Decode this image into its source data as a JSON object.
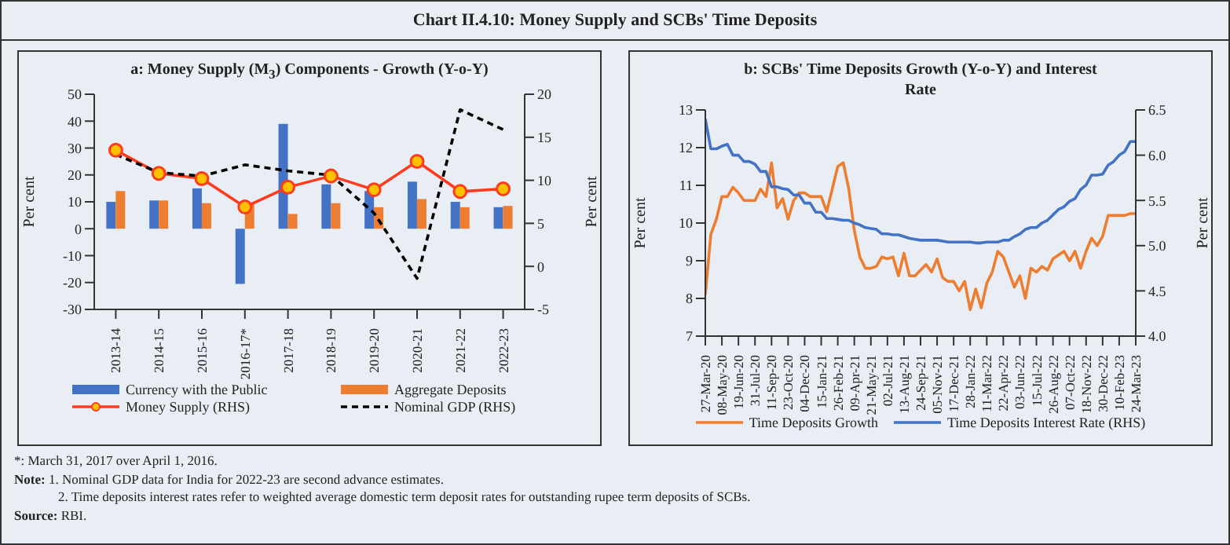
{
  "chart_data": [
    {
      "type": "bar",
      "title": "a: Money Supply (M$_{3}$) Components - Growth (Y-o-Y)",
      "ylabel": "Per cent",
      "y2label": "Per cent",
      "categories": [
        "2013-14",
        "2014-15",
        "2015-16",
        "2016-17*",
        "2017-18",
        "2018-19",
        "2019-20",
        "2020-21",
        "2021-22",
        "2022-23"
      ],
      "series": [
        {
          "name": "Currency with the Public",
          "color": "#4472c4",
          "values": [
            10,
            10.5,
            15,
            -20.5,
            39,
            16.5,
            14,
            17.5,
            10,
            8
          ]
        },
        {
          "name": "Aggregate Deposits",
          "color": "#ed7d31",
          "values": [
            14,
            10.5,
            9.5,
            9,
            5.5,
            9.5,
            8,
            11,
            8,
            8.5
          ]
        },
        {
          "name": "Money Supply (RHS)",
          "type": "line",
          "axis": "y2",
          "color": "#ff3b1f",
          "marker": "circle",
          "line_style": "solid",
          "values": [
            13.5,
            10.8,
            10.2,
            6.9,
            9.2,
            10.5,
            8.9,
            12.2,
            8.7,
            9.0
          ]
        },
        {
          "name": "Nominal GDP (RHS)",
          "type": "line",
          "axis": "y2",
          "color": "#000000",
          "marker": "none",
          "line_style": "dashed",
          "values": [
            13,
            10.9,
            10.5,
            11.8,
            11.1,
            10.6,
            6.2,
            -1.4,
            18.2,
            15.9
          ]
        }
      ],
      "ylim": [
        -30,
        50
      ],
      "yticks": [
        -30,
        -20,
        -10,
        0,
        10,
        20,
        30,
        40,
        50
      ],
      "y2lim": [
        -5,
        20
      ],
      "y2ticks": [
        -5,
        0,
        5,
        10,
        15,
        20
      ],
      "legend": "bottom",
      "annotations": [
        "Chart II.4.10: Money Supply and SCBs' Time Deposits",
        "*: March 31, 2017 over April 1, 2016."
      ]
    },
    {
      "type": "line",
      "title": "b: SCBs' Time Deposits Growth (Y-o-Y) and Interest Rate",
      "ylabel": "Per cent",
      "y2label": "Per cent",
      "x": [
        "2020-03-27",
        "2020-04-10",
        "2020-04-24",
        "2020-05-08",
        "2020-05-22",
        "2020-06-05",
        "2020-06-19",
        "2020-07-03",
        "2020-07-17",
        "2020-07-31",
        "2020-08-14",
        "2020-08-28",
        "2020-09-11",
        "2020-09-25",
        "2020-10-09",
        "2020-10-23",
        "2020-11-06",
        "2020-11-20",
        "2020-12-04",
        "2020-12-18",
        "2021-01-01",
        "2021-01-15",
        "2021-01-29",
        "2021-02-12",
        "2021-02-26",
        "2021-03-12",
        "2021-03-26",
        "2021-04-09",
        "2021-04-23",
        "2021-05-07",
        "2021-05-21",
        "2021-06-04",
        "2021-06-18",
        "2021-07-02",
        "2021-07-16",
        "2021-07-30",
        "2021-08-13",
        "2021-08-27",
        "2021-09-10",
        "2021-09-24",
        "2021-10-08",
        "2021-10-22",
        "2021-11-05",
        "2021-11-19",
        "2021-12-03",
        "2021-12-17",
        "2021-12-31",
        "2022-01-14",
        "2022-01-28",
        "2022-02-11",
        "2022-02-25",
        "2022-03-11",
        "2022-03-25",
        "2022-04-08",
        "2022-04-22",
        "2022-05-06",
        "2022-05-20",
        "2022-06-03",
        "2022-06-17",
        "2022-07-01",
        "2022-07-15",
        "2022-07-29",
        "2022-08-12",
        "2022-08-26",
        "2022-09-09",
        "2022-09-23",
        "2022-10-07",
        "2022-10-21",
        "2022-11-04",
        "2022-11-18",
        "2022-12-02",
        "2022-12-16",
        "2022-12-30",
        "2023-01-13",
        "2023-01-27",
        "2023-02-10",
        "2023-02-24",
        "2023-03-10",
        "2023-03-24"
      ],
      "series": [
        {
          "name": "Time Deposits Growth",
          "color": "#ed7d31",
          "values": [
            8.1,
            9.7,
            10.1,
            10.7,
            10.7,
            10.95,
            10.8,
            10.6,
            10.6,
            10.6,
            10.9,
            10.7,
            11.6,
            10.4,
            10.65,
            10.1,
            10.6,
            10.8,
            10.8,
            10.7,
            10.7,
            10.7,
            10.3,
            10.9,
            11.5,
            11.6,
            10.9,
            9.8,
            9.1,
            8.8,
            8.8,
            8.85,
            9.1,
            9.05,
            9.1,
            8.6,
            9.2,
            8.6,
            8.6,
            8.75,
            8.9,
            8.7,
            9.05,
            8.55,
            8.45,
            8.45,
            8.2,
            8.45,
            7.7,
            8.25,
            7.75,
            8.4,
            8.7,
            9.25,
            9.1,
            8.7,
            8.3,
            8.6,
            8.0,
            8.8,
            8.7,
            8.85,
            8.75,
            9.05,
            9.15,
            9.25,
            9.0,
            9.25,
            8.8,
            9.25,
            9.6,
            9.4,
            9.65,
            10.2,
            10.2,
            10.2,
            10.2,
            10.25,
            10.25
          ]
        },
        {
          "name": "Time Deposits Interest Rate (RHS)",
          "color": "#4472c4",
          "axis": "y2",
          "values": [
            6.4,
            6.07,
            6.07,
            6.1,
            6.12,
            6.0,
            6.0,
            5.93,
            5.93,
            5.9,
            5.82,
            5.82,
            5.65,
            5.65,
            5.63,
            5.62,
            5.56,
            5.56,
            5.47,
            5.47,
            5.37,
            5.37,
            5.3,
            5.3,
            5.29,
            5.28,
            5.28,
            5.25,
            5.23,
            5.2,
            5.19,
            5.18,
            5.13,
            5.13,
            5.12,
            5.12,
            5.1,
            5.08,
            5.07,
            5.06,
            5.06,
            5.06,
            5.06,
            5.05,
            5.04,
            5.04,
            5.04,
            5.04,
            5.04,
            5.03,
            5.03,
            5.04,
            5.04,
            5.04,
            5.06,
            5.06,
            5.1,
            5.13,
            5.18,
            5.2,
            5.2,
            5.25,
            5.28,
            5.34,
            5.4,
            5.43,
            5.49,
            5.52,
            5.62,
            5.67,
            5.78,
            5.78,
            5.79,
            5.89,
            5.93,
            6.0,
            6.04,
            6.15,
            6.15
          ]
        }
      ],
      "xlim": [
        "2020-03-27",
        "2023-03-24"
      ],
      "xticks": [
        {
          "value": "2020-03-27",
          "label": "27-Mar-20"
        },
        {
          "value": "2020-05-08",
          "label": "08-May-20"
        },
        {
          "value": "2020-06-19",
          "label": "19-Jun-20"
        },
        {
          "value": "2020-07-31",
          "label": "31-Jul-20"
        },
        {
          "value": "2020-09-11",
          "label": "11-Sep-20"
        },
        {
          "value": "2020-10-23",
          "label": "23-Oct-20"
        },
        {
          "value": "2020-12-04",
          "label": "04-Dec-20"
        },
        {
          "value": "2021-01-15",
          "label": "15-Jan-21"
        },
        {
          "value": "2021-02-26",
          "label": "26-Feb-21"
        },
        {
          "value": "2021-04-09",
          "label": "09-Apr-21"
        },
        {
          "value": "2021-05-21",
          "label": "21-May-21"
        },
        {
          "value": "2021-07-02",
          "label": "02-Jul-21"
        },
        {
          "value": "2021-08-13",
          "label": "13-Aug-21"
        },
        {
          "value": "2021-09-24",
          "label": "24-Sep-21"
        },
        {
          "value": "2021-11-05",
          "label": "05-Nov-21"
        },
        {
          "value": "2021-12-17",
          "label": "17-Dec-21"
        },
        {
          "value": "2022-01-28",
          "label": "28-Jan-22"
        },
        {
          "value": "2022-03-11",
          "label": "11-Mar-22"
        },
        {
          "value": "2022-04-22",
          "label": "22-Apr-22"
        },
        {
          "value": "2022-06-03",
          "label": "03-Jun-22"
        },
        {
          "value": "2022-07-15",
          "label": "15-Jul-22"
        },
        {
          "value": "2022-08-26",
          "label": "26-Aug-22"
        },
        {
          "value": "2022-10-07",
          "label": "07-Oct-22"
        },
        {
          "value": "2022-11-18",
          "label": "18-Nov-22"
        },
        {
          "value": "2022-12-30",
          "label": "30-Dec-22"
        },
        {
          "value": "2023-02-10",
          "label": "10-Feb-23"
        },
        {
          "value": "2023-03-24",
          "label": "24-Mar-23"
        }
      ],
      "ylim": [
        7,
        13
      ],
      "yticks": [
        7,
        8,
        9,
        10,
        11,
        12,
        13
      ],
      "y2lim": [
        4,
        6.5
      ],
      "y2ticks": [
        {
          "value": 4,
          "label": "4.0"
        },
        {
          "value": 4.5,
          "label": "4.5"
        },
        {
          "value": 5,
          "label": "5.0"
        },
        {
          "value": 5.5,
          "label": "5.5"
        },
        {
          "value": 6,
          "label": "6.0"
        },
        {
          "value": 6.5,
          "label": "6.5"
        }
      ],
      "legend": "bottom",
      "marker": "none",
      "line_style": "solid",
      "annotations": [
        "Note: 1. Nominal GDP data for India for 2022-23 are second advance estimates.",
        "2. Time deposits interest rates refer to weighted average domestic term deposit rates for outstanding rupee term deposits of SCBs.",
        "Source: RBI."
      ]
    }
  ]
}
